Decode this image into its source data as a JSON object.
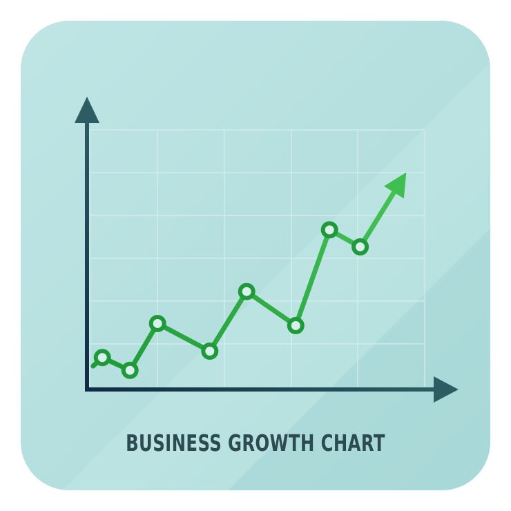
{
  "colors": {
    "axis": "#1f4a56",
    "axis_dark": "#0f2a44",
    "line": "#1e9a3a",
    "line_light": "#3fbf4f",
    "grid": "#d7eeee",
    "marker_fill": "#d9f0ec",
    "title": "#2b4a52"
  },
  "chart_data": {
    "type": "line",
    "title": "BUSINESS GROWTH CHART",
    "xlabel": "",
    "ylabel": "",
    "grid": true,
    "legend": "none",
    "x": [
      0.3,
      1.0,
      1.5,
      2.0,
      3.0,
      3.5,
      4.0
    ],
    "series": [
      {
        "values": [
          2.2,
          1.9,
          2.3,
          1.75,
          2.55,
          2.05,
          3.6
        ]
      }
    ],
    "markers": [
      {
        "x": 0.25,
        "y": 0.75
      },
      {
        "x": 0.7,
        "y": 0.45
      },
      {
        "x": 1.15,
        "y": 1.55
      },
      {
        "x": 2.0,
        "y": 0.9
      },
      {
        "x": 2.6,
        "y": 2.3
      },
      {
        "x": 3.4,
        "y": 1.5
      },
      {
        "x": 3.95,
        "y": 3.75
      },
      {
        "x": 4.45,
        "y": 3.35
      }
    ],
    "arrow_end": {
      "x": 5.2,
      "y": 5.1
    },
    "line_start": {
      "x": 0.1,
      "y": 0.55
    },
    "xlim": [
      0,
      5.5
    ],
    "ylim": [
      0,
      6.1
    ]
  }
}
